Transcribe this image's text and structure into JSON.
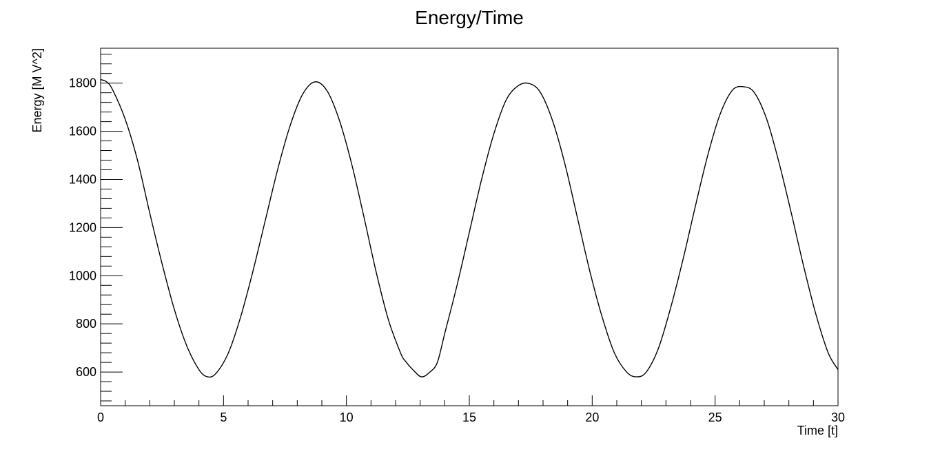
{
  "chart_data": {
    "type": "line",
    "title": "Energy/Time",
    "xlabel": "Time [t]",
    "ylabel": "Energy [M V^2]",
    "xlim": [
      0,
      30
    ],
    "ylim": [
      460,
      1945
    ],
    "x_ticks": [
      "0",
      "5",
      "10",
      "15",
      "20",
      "25",
      "30"
    ],
    "y_ticks": [
      "600",
      "800",
      "1000",
      "1200",
      "1400",
      "1600",
      "1800"
    ],
    "grid": false,
    "legend": "none",
    "line_color": "#000000",
    "series": [
      {
        "x": [
          0,
          0.25,
          0.5,
          1.0,
          1.5,
          2.0,
          2.5,
          3.0,
          3.5,
          4.0,
          4.35,
          4.7,
          5.2,
          5.7,
          6.2,
          6.7,
          7.2,
          7.7,
          8.2,
          8.7,
          9.2,
          9.7,
          10.2,
          10.7,
          11.2,
          11.7,
          12.2,
          12.4,
          12.7,
          13.05,
          13.4,
          13.7,
          14.0,
          14.5,
          15.0,
          15.5,
          16.0,
          16.5,
          17.0,
          17.45,
          17.9,
          18.4,
          18.9,
          19.4,
          19.9,
          20.4,
          20.9,
          21.4,
          21.8,
          22.2,
          22.7,
          23.2,
          23.7,
          24.2,
          24.7,
          25.2,
          25.7,
          26.15,
          26.6,
          27.1,
          27.6,
          28.1,
          28.6,
          29.1,
          29.6,
          30.0
        ],
        "y": [
          1815,
          1805,
          1770,
          1650,
          1480,
          1260,
          1050,
          860,
          710,
          610,
          580,
          595,
          680,
          830,
          1020,
          1230,
          1440,
          1620,
          1750,
          1805,
          1770,
          1650,
          1470,
          1250,
          1020,
          820,
          680,
          645,
          610,
          580,
          600,
          640,
          760,
          960,
          1180,
          1400,
          1590,
          1730,
          1790,
          1798,
          1760,
          1640,
          1460,
          1240,
          1020,
          830,
          680,
          600,
          580,
          600,
          700,
          870,
          1070,
          1290,
          1500,
          1670,
          1770,
          1785,
          1760,
          1650,
          1470,
          1260,
          1040,
          840,
          680,
          610
        ]
      }
    ]
  }
}
